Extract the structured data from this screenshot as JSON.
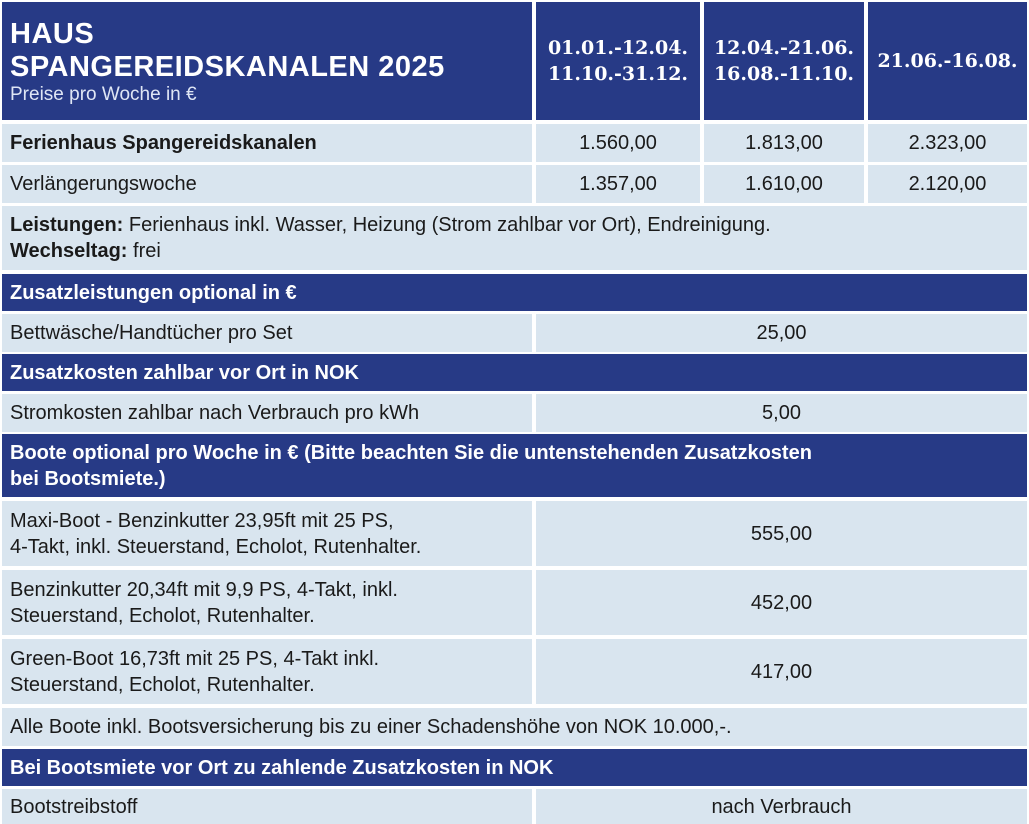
{
  "header": {
    "title_line1": "HAUS",
    "title_line2": "SPANGEREIDSKANALEN 2025",
    "subtitle": "Preise pro Woche in €",
    "periods": [
      {
        "line1": "01.01.-12.04.",
        "line2": "11.10.-31.12."
      },
      {
        "line1": "12.04.-21.06.",
        "line2": "16.08.-11.10."
      },
      {
        "line1": "21.06.-16.08.",
        "line2": ""
      }
    ]
  },
  "prices": [
    {
      "label": "Ferienhaus Spangereidskanalen",
      "values": [
        "1.560,00",
        "1.813,00",
        "2.323,00"
      ]
    },
    {
      "label": "Verlängerungswoche",
      "values": [
        "1.357,00",
        "1.610,00",
        "2.120,00"
      ]
    }
  ],
  "services": {
    "leistungen_label": "Leistungen:",
    "leistungen_text": " Ferienhaus inkl. Wasser, Heizung (Strom zahlbar vor Ort), Endreinigung.",
    "wechseltag_label": "Wechseltag:",
    "wechseltag_text": " frei"
  },
  "sections": {
    "optional": {
      "title": "Zusatzleistungen optional in €",
      "rows": [
        {
          "label": "Bettwäsche/Handtücher pro Set",
          "value": "25,00"
        }
      ]
    },
    "local_costs": {
      "title": "Zusatzkosten zahlbar vor Ort in NOK",
      "rows": [
        {
          "label": "Stromkosten zahlbar nach Verbrauch pro kWh",
          "value": "5,00"
        }
      ]
    },
    "boats": {
      "title_line1": "Boote optional pro Woche in € (Bitte beachten Sie die untenstehenden Zusatzkosten",
      "title_line2": "bei Bootsmiete.)",
      "rows": [
        {
          "line1": "Maxi-Boot - Benzinkutter 23,95ft mit 25 PS,",
          "line2": "4-Takt, inkl. Steuerstand, Echolot, Rutenhalter.",
          "value": "555,00"
        },
        {
          "line1": "Benzinkutter 20,34ft mit 9,9 PS, 4-Takt, inkl.",
          "line2": "Steuerstand, Echolot, Rutenhalter.",
          "value": "452,00"
        },
        {
          "line1": "Green-Boot 16,73ft mit 25 PS, 4-Takt inkl.",
          "line2": "Steuerstand, Echolot, Rutenhalter.",
          "value": "417,00"
        }
      ],
      "note": "Alle Boote inkl. Bootsversicherung bis zu einer Schadenshöhe von NOK 10.000,-."
    },
    "boat_costs": {
      "title": "Bei Bootsmiete vor Ort zu zahlende Zusatzkosten in NOK",
      "rows": [
        {
          "label": "Bootstreibstoff",
          "value": "nach Verbrauch"
        }
      ]
    }
  },
  "colors": {
    "header_blue": "#273a86",
    "row_light": "#d9e5ef"
  }
}
